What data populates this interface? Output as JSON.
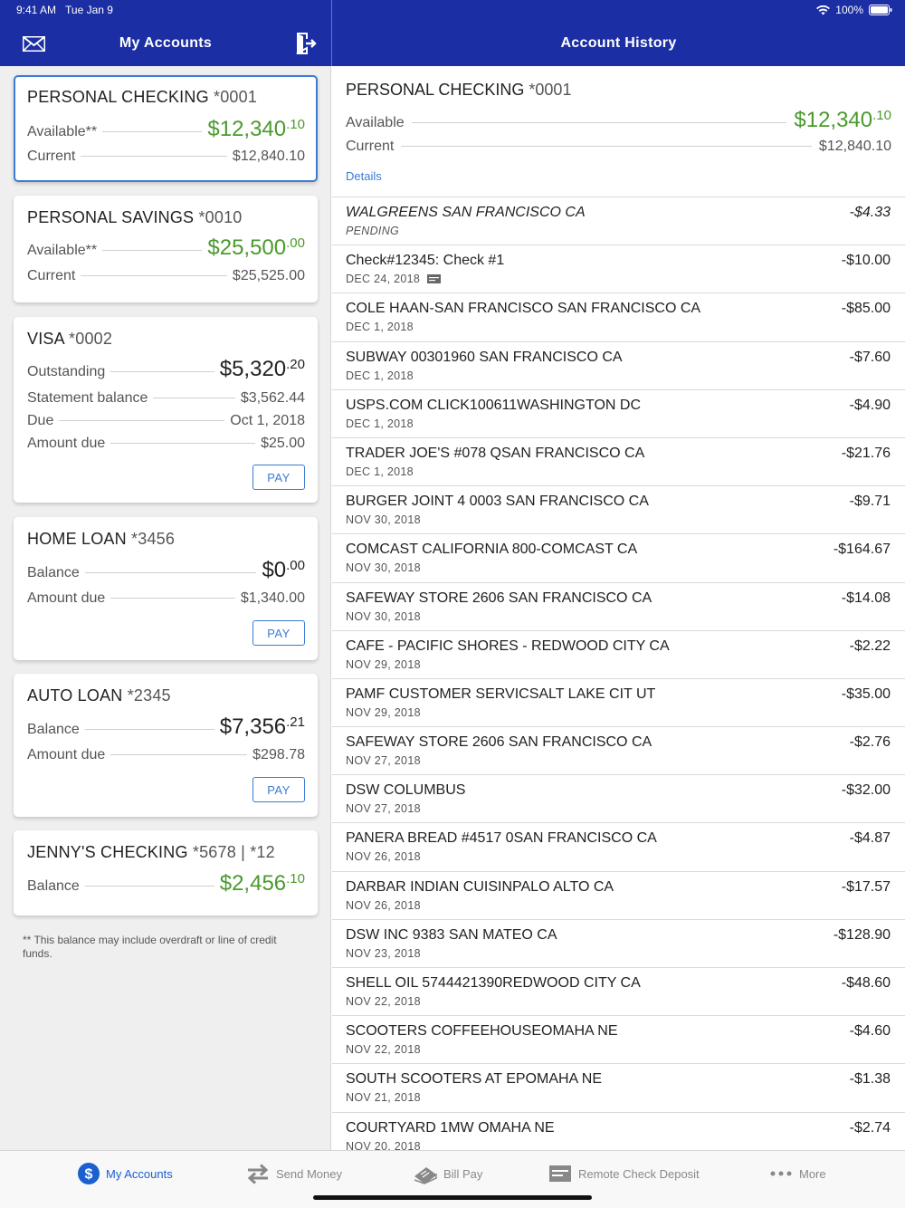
{
  "status": {
    "time": "9:41 AM",
    "date": "Tue Jan 9",
    "battery": "100%"
  },
  "header": {
    "left_title": "My Accounts",
    "right_title": "Account History"
  },
  "accounts": [
    {
      "name": "PERSONAL CHECKING",
      "number": "*0001",
      "rows": [
        {
          "label": "Available**",
          "value_main": "$12,340",
          "value_cents": ".10"
        },
        {
          "label": "Current",
          "value": "$12,840.10"
        }
      ]
    },
    {
      "name": "PERSONAL SAVINGS",
      "number": "*0010",
      "rows": [
        {
          "label": "Available**",
          "value_main": "$25,500",
          "value_cents": ".00"
        },
        {
          "label": "Current",
          "value": "$25,525.00"
        }
      ]
    },
    {
      "name": "VISA",
      "number": "*0002",
      "rows": [
        {
          "label": "Outstanding",
          "value_main": "$5,320",
          "value_cents": ".20"
        },
        {
          "label": "Statement balance",
          "value": "$3,562.44"
        },
        {
          "label": "Due",
          "value": "Oct 1, 2018"
        },
        {
          "label": "Amount due",
          "value": "$25.00"
        }
      ],
      "pay": "PAY"
    },
    {
      "name": "HOME LOAN",
      "number": "*3456",
      "rows": [
        {
          "label": "Balance",
          "value_main": "$0",
          "value_cents": ".00"
        },
        {
          "label": "Amount due",
          "value": "$1,340.00"
        }
      ],
      "pay": "PAY"
    },
    {
      "name": "AUTO LOAN",
      "number": "*2345",
      "rows": [
        {
          "label": "Balance",
          "value_main": "$7,356",
          "value_cents": ".21"
        },
        {
          "label": "Amount due",
          "value": "$298.78"
        }
      ],
      "pay": "PAY"
    },
    {
      "name": "JENNY'S CHECKING",
      "number": "*5678 | *12",
      "rows": [
        {
          "label": "Balance",
          "value_main": "$2,456",
          "value_cents": ".10"
        }
      ]
    }
  ],
  "footnote": "** This balance may include overdraft or line of credit funds.",
  "history": {
    "account_name": "PERSONAL CHECKING",
    "account_number": "*0001",
    "available_label": "Available",
    "available_main": "$12,340",
    "available_cents": ".10",
    "current_label": "Current",
    "current_value": "$12,840.10",
    "details_link": "Details",
    "transactions": [
      {
        "desc": "WALGREENS SAN FRANCISCO CA",
        "date": "PENDING",
        "amount": "-$4.33"
      },
      {
        "desc": "Check#12345: Check #1",
        "date": "DEC 24, 2018",
        "amount": "-$10.00"
      },
      {
        "desc": "COLE HAAN-SAN FRANCISCO SAN FRANCISCO CA",
        "date": "DEC 1, 2018",
        "amount": "-$85.00"
      },
      {
        "desc": "SUBWAY 00301960 SAN FRANCISCO CA",
        "date": "DEC 1, 2018",
        "amount": "-$7.60"
      },
      {
        "desc": "USPS.COM CLICK100611WASHINGTON DC",
        "date": "DEC 1, 2018",
        "amount": "-$4.90"
      },
      {
        "desc": "TRADER JOE'S #078 QSAN FRANCISCO CA",
        "date": "DEC 1, 2018",
        "amount": "-$21.76"
      },
      {
        "desc": "BURGER JOINT 4 0003 SAN FRANCISCO CA",
        "date": "NOV 30, 2018",
        "amount": "-$9.71"
      },
      {
        "desc": "COMCAST CALIFORNIA 800-COMCAST CA",
        "date": "NOV 30, 2018",
        "amount": "-$164.67"
      },
      {
        "desc": "SAFEWAY STORE 2606 SAN FRANCISCO CA",
        "date": "NOV 30, 2018",
        "amount": "-$14.08"
      },
      {
        "desc": "CAFE - PACIFIC SHORES - REDWOOD CITY CA",
        "date": "NOV 29, 2018",
        "amount": "-$2.22"
      },
      {
        "desc": "PAMF CUSTOMER SERVICSALT LAKE CIT UT",
        "date": "NOV 29, 2018",
        "amount": "-$35.00"
      },
      {
        "desc": "SAFEWAY STORE 2606 SAN FRANCISCO CA",
        "date": "NOV 27, 2018",
        "amount": "-$2.76"
      },
      {
        "desc": "DSW COLUMBUS",
        "date": "NOV 27, 2018",
        "amount": "-$32.00"
      },
      {
        "desc": "PANERA BREAD #4517 0SAN FRANCISCO CA",
        "date": "NOV 26, 2018",
        "amount": "-$4.87"
      },
      {
        "desc": "DARBAR INDIAN CUISINPALO ALTO CA",
        "date": "NOV 26, 2018",
        "amount": "-$17.57"
      },
      {
        "desc": "DSW INC 9383 SAN MATEO CA",
        "date": "NOV 23, 2018",
        "amount": "-$128.90"
      },
      {
        "desc": "SHELL OIL 5744421390REDWOOD CITY CA",
        "date": "NOV 22, 2018",
        "amount": "-$48.60"
      },
      {
        "desc": "SCOOTERS COFFEEHOUSEOMAHA NE",
        "date": "NOV 22, 2018",
        "amount": "-$4.60"
      },
      {
        "desc": "SOUTH SCOOTERS AT EPOMAHA NE",
        "date": "NOV 21, 2018",
        "amount": "-$1.38"
      },
      {
        "desc": "COURTYARD 1MW OMAHA NE",
        "date": "NOV 20, 2018",
        "amount": "-$2.74"
      }
    ]
  },
  "tabs": [
    {
      "label": "My Accounts",
      "icon": "dollar-circle-icon",
      "active": true
    },
    {
      "label": "Send Money",
      "icon": "transfer-arrows-icon"
    },
    {
      "label": "Bill Pay",
      "icon": "bill-icon"
    },
    {
      "label": "Remote Check Deposit",
      "icon": "check-icon"
    },
    {
      "label": "More",
      "icon": "more-dots-icon"
    }
  ],
  "colors": {
    "header": "#1b2ea3",
    "accent": "#3a7bd5",
    "positive": "#4a9a2c"
  }
}
